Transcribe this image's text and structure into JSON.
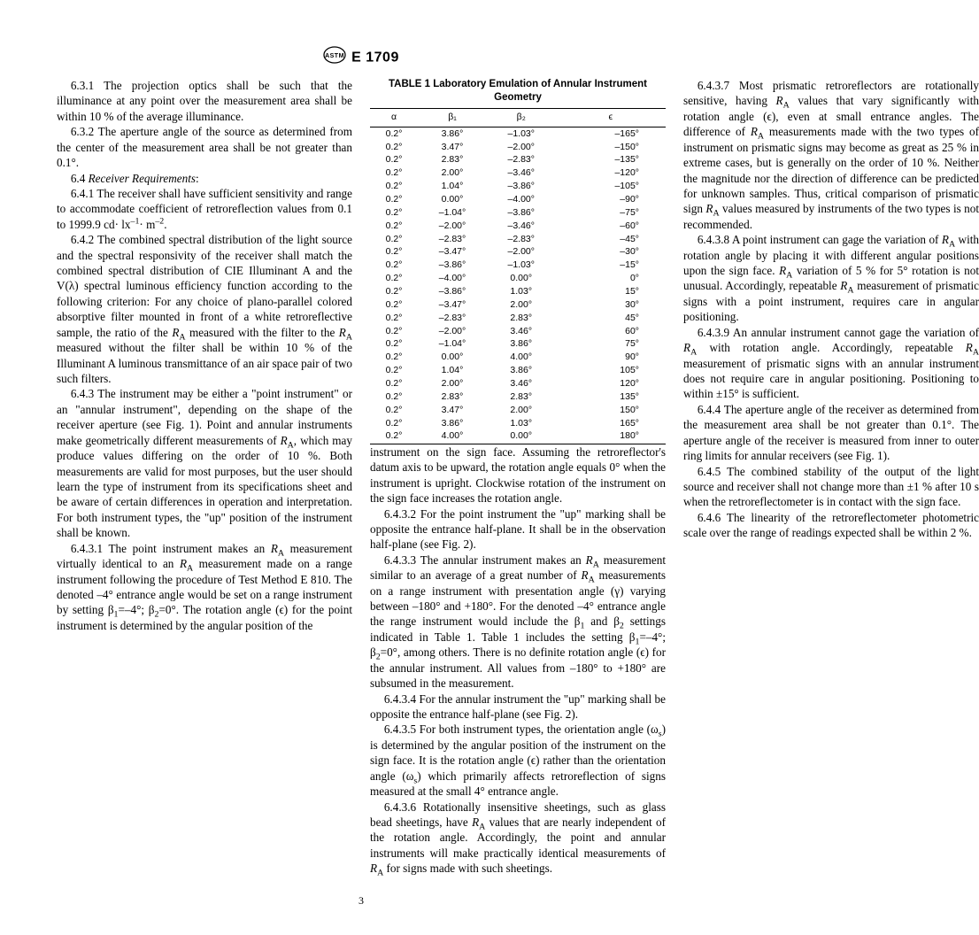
{
  "header": {
    "designation": "E 1709"
  },
  "pageNumber": "3",
  "paragraphs": {
    "p6_3_1": "6.3.1 The projection optics shall be such that the illuminance at any point over the measurement area shall be within 10 % of the average illuminance.",
    "p6_3_2": "6.3.2 The aperture angle of the source as determined from the center of the measurement area shall be not greater than 0.1°.",
    "p6_4_hdr": "6.4 ",
    "p6_4_hdr_it": "Receiver Requirements",
    "p6_4_colon": ":",
    "p6_4_1a": "6.4.1 The receiver shall have sufficient sensitivity and range to accommodate coefficient of retroreflection values from 0.1 to 1999.9 cd· lx",
    "p6_4_1b": "· m",
    "p6_4_1c": ".",
    "p6_4_2a": "6.4.2 The combined spectral distribution of the light source and the spectral responsivity of the receiver shall match the combined spectral distribution of CIE Illuminant A and the V(λ) spectral luminous efficiency function according to the following criterion: For any choice of plano-parallel colored absorptive filter mounted in front of a white retroreflective sample, the ratio of the ",
    "p6_4_2b": " measured with the filter to the ",
    "p6_4_2c": " measured without the filter shall be within 10 % of the Illuminant A luminous transmittance of an air space pair of two such filters.",
    "p6_4_3a": "6.4.3 The instrument may be either a \"point instrument\" or an \"annular instrument\", depending on the shape of the receiver aperture (see Fig. 1). Point and annular instruments make geometrically different measurements of ",
    "p6_4_3b": ", which may produce values differing on the order of 10 %. Both measurements are valid for most purposes, but the user should learn the type of instrument from its specifications sheet and be aware of certain differences in operation and interpretation. For both instrument types, the \"up\" position of the instrument shall be known.",
    "p6_4_3_1a": "6.4.3.1 The point instrument makes an ",
    "p6_4_3_1b": " measurement virtually identical to an ",
    "p6_4_3_1c": " measurement made on a range instrument following the procedure of Test Method E 810. The denoted –4° entrance angle would be set on a range instrument by setting β",
    "p6_4_3_1d": "=–4°; β",
    "p6_4_3_1e": "=0°. The rotation angle (ϵ) for the point instrument is determined by the angular position of the ",
    "p6_4_3_1_cont": "instrument on the sign face. Assuming the retroreflector's datum axis to be upward, the rotation angle equals 0° when the instrument is upright. Clockwise rotation of the instrument on the sign face increases the rotation angle.",
    "p6_4_3_2": "6.4.3.2 For the point instrument the \"up\" marking shall be opposite the entrance half-plane. It shall be in the observation half-plane (see Fig. 2).",
    "p6_4_3_3a": "6.4.3.3 The annular instrument makes an ",
    "p6_4_3_3b": " measurement similar to an average of a great number of ",
    "p6_4_3_3c": " measurements on a range instrument with presentation angle (γ) varying between –180° and +180°. For the denoted –4° entrance angle the range instrument would include the β",
    "p6_4_3_3d": " and β",
    "p6_4_3_3e": " settings indicated in Table 1. Table 1 includes the setting β",
    "p6_4_3_3f": "=–4°; β",
    "p6_4_3_3g": "=0°, among others. There is no definite rotation angle (ϵ) for the annular instrument. All values from –180° to +180° are subsumed in the measurement.",
    "p6_4_3_4": "6.4.3.4 For the annular instrument the \"up\" marking shall be opposite the entrance half-plane (see Fig. 2).",
    "p6_4_3_5a": "6.4.3.5 For both instrument types, the orientation angle (ω",
    "p6_4_3_5b": ") is determined by the angular position of the instrument on the sign face. It is the rotation angle (ϵ) rather than the orientation angle (ω",
    "p6_4_3_5c": ") which primarily affects retroreflection of signs measured at the small 4° entrance angle.",
    "p6_4_3_6a": "6.4.3.6 Rotationally insensitive sheetings, such as glass bead sheetings, have ",
    "p6_4_3_6b": " values that are nearly independent of the rotation angle. Accordingly, the point and annular instruments will make practically identical measurements of ",
    "p6_4_3_6c": " for signs made with such sheetings.",
    "p6_4_3_7a": "6.4.3.7 Most prismatic retroreflectors are rotationally sensitive, having ",
    "p6_4_3_7b": " values that vary significantly with rotation angle (ϵ), even at small entrance angles. The difference of ",
    "p6_4_3_7c": " measurements made with the two types of instrument on prismatic signs may become as great as 25 % in extreme cases, but is generally on the order of 10 %. Neither the magnitude nor the direction of difference can be predicted for unknown samples. Thus, critical comparison of prismatic sign ",
    "p6_4_3_7d": " values measured by instruments of the two types is not recommended.",
    "p6_4_3_8a": "6.4.3.8 A point instrument can gage the variation of ",
    "p6_4_3_8b": " with rotation angle by placing it with different angular positions upon the sign face. ",
    "p6_4_3_8c": " variation of 5 % for 5° rotation is not unusual. Accordingly, repeatable ",
    "p6_4_3_8d": " measurement of prismatic signs with a point instrument, requires care in angular positioning.",
    "p6_4_3_9a": "6.4.3.9 An annular instrument cannot gage the variation of ",
    "p6_4_3_9b": " with rotation angle. Accordingly, repeatable ",
    "p6_4_3_9c": " measurement of prismatic signs with an annular instrument does not require care in angular positioning. Positioning to within ±15° is sufficient.",
    "p6_4_4": "6.4.4 The aperture angle of the receiver as determined from the measurement area shall be not greater than 0.1°. The aperture angle of the receiver is measured from inner to outer ring limits for annular receivers (see Fig. 1).",
    "p6_4_5": "6.4.5 The combined stability of the output of the light source and receiver shall not change more than ±1 % after 10 s when the retroreflectometer is in contact with the sign face.",
    "p6_4_6": "6.4.6 The linearity of the retroreflectometer photometric scale over the range of readings expected shall be within 2 %."
  },
  "RA": {
    "sym": "R",
    "sub": "A"
  },
  "table1": {
    "title": "TABLE 1  Laboratory Emulation of Annular Instrument Geometry",
    "headers": [
      "α",
      "β₁",
      "β₂",
      "ϵ"
    ],
    "rows": [
      [
        "0.2°",
        "3.86°",
        "–1.03°",
        "–165°"
      ],
      [
        "0.2°",
        "3.47°",
        "–2.00°",
        "–150°"
      ],
      [
        "0.2°",
        "2.83°",
        "–2.83°",
        "–135°"
      ],
      [
        "0.2°",
        "2.00°",
        "–3.46°",
        "–120°"
      ],
      [
        "0.2°",
        "1.04°",
        "–3.86°",
        "–105°"
      ],
      [
        "0.2°",
        "0.00°",
        "–4.00°",
        "–90°"
      ],
      [
        "0.2°",
        "–1.04°",
        "–3.86°",
        "–75°"
      ],
      [
        "0.2°",
        "–2.00°",
        "–3.46°",
        "–60°"
      ],
      [
        "0.2°",
        "–2.83°",
        "–2.83°",
        "–45°"
      ],
      [
        "0.2°",
        "–3.47°",
        "–2.00°",
        "–30°"
      ],
      [
        "0.2°",
        "–3.86°",
        "–1.03°",
        "–15°"
      ],
      [
        "0.2°",
        "–4.00°",
        "0.00°",
        "0°"
      ],
      [
        "0.2°",
        "–3.86°",
        "1.03°",
        "15°"
      ],
      [
        "0.2°",
        "–3.47°",
        "2.00°",
        "30°"
      ],
      [
        "0.2°",
        "–2.83°",
        "2.83°",
        "45°"
      ],
      [
        "0.2°",
        "–2.00°",
        "3.46°",
        "60°"
      ],
      [
        "0.2°",
        "–1.04°",
        "3.86°",
        "75°"
      ],
      [
        "0.2°",
        "0.00°",
        "4.00°",
        "90°"
      ],
      [
        "0.2°",
        "1.04°",
        "3.86°",
        "105°"
      ],
      [
        "0.2°",
        "2.00°",
        "3.46°",
        "120°"
      ],
      [
        "0.2°",
        "2.83°",
        "2.83°",
        "135°"
      ],
      [
        "0.2°",
        "3.47°",
        "2.00°",
        "150°"
      ],
      [
        "0.2°",
        "3.86°",
        "1.03°",
        "165°"
      ],
      [
        "0.2°",
        "4.00°",
        "0.00°",
        "180°"
      ]
    ]
  }
}
